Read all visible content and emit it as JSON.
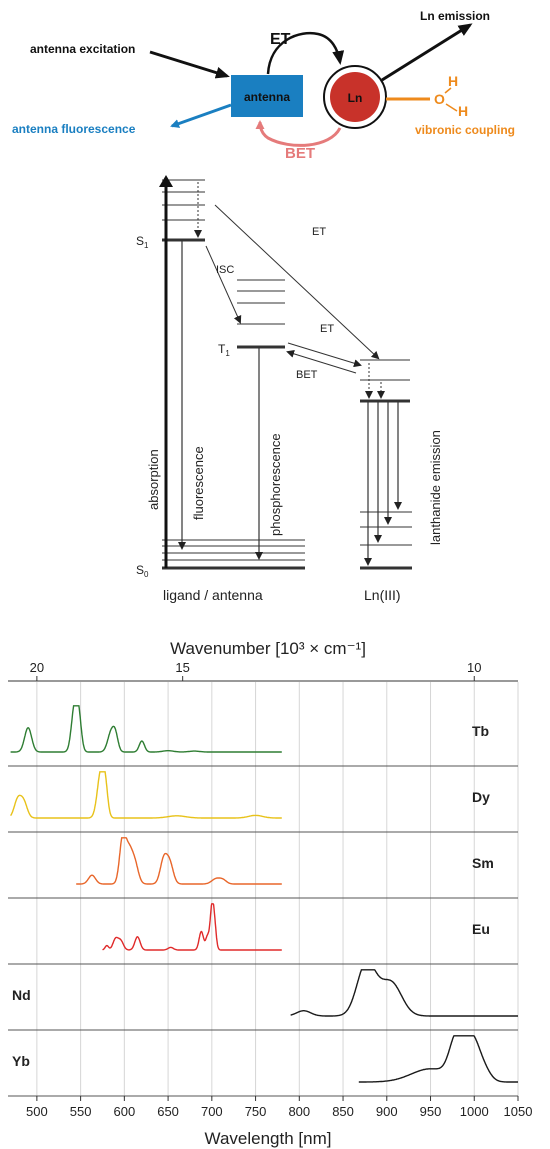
{
  "scheme": {
    "antenna_excitation": "antenna excitation",
    "antenna": "antenna",
    "ln": "Ln",
    "et": "ET",
    "bet": "BET",
    "ln_emission": "Ln emission",
    "antenna_fluorescence": "antenna fluorescence",
    "vibronic_coupling": "vibronic coupling",
    "h_top": "H",
    "o": "O",
    "h_bottom": "H",
    "colors": {
      "antenna": "#1a7fc1",
      "ln": "#c8322a",
      "bet": "#e57b7b",
      "vibronic": "#ee8a1c",
      "fluor": "#1a7fc1"
    }
  },
  "jablonski": {
    "s1": "S",
    "s1_sub": "1",
    "t1": "T",
    "t1_sub": "1",
    "s0": "S",
    "s0_sub": "0",
    "isc": "ISC",
    "et_top": "ET",
    "et_mid": "ET",
    "bet": "BET",
    "absorption": "absorption",
    "fluorescence": "fluorescence",
    "phosphorescence": "phosphorescence",
    "lanthanide_emission": "lanthanide emission",
    "ligand_antenna": "ligand / antenna",
    "ln_iii": "Ln(III)"
  },
  "chart_data": {
    "type": "line",
    "top_axis_label": "Wavenumber [10³ × cm⁻¹]",
    "top_ticks": [
      "20",
      "15",
      "10"
    ],
    "top_tick_values": [
      20,
      15,
      10
    ],
    "xlabel": "Wavelength [nm]",
    "xlim": [
      467,
      1050
    ],
    "x_ticks": [
      "500",
      "550",
      "600",
      "650",
      "700",
      "750",
      "800",
      "850",
      "900",
      "950",
      "1000",
      "1050"
    ],
    "x_tick_values": [
      500,
      550,
      600,
      650,
      700,
      750,
      800,
      850,
      900,
      950,
      1000,
      1050
    ],
    "grid": true,
    "series": [
      {
        "name": "Tb",
        "color": "#2e7d32",
        "x_range": [
          470,
          780
        ],
        "peaks": [
          [
            490,
            0.55,
            4
          ],
          [
            543,
            1.0,
            3.5
          ],
          [
            548,
            0.7,
            3
          ],
          [
            585,
            0.45,
            4
          ],
          [
            590,
            0.3,
            3
          ],
          [
            620,
            0.25,
            3
          ],
          [
            650,
            0.03,
            6
          ],
          [
            680,
            0.02,
            6
          ]
        ]
      },
      {
        "name": "Dy",
        "color": "#e8c21a",
        "x_range": [
          470,
          780
        ],
        "peaks": [
          [
            478,
            0.4,
            4
          ],
          [
            485,
            0.35,
            4
          ],
          [
            573,
            1.0,
            4
          ],
          [
            578,
            0.6,
            3
          ],
          [
            660,
            0.05,
            10
          ],
          [
            750,
            0.06,
            8
          ]
        ]
      },
      {
        "name": "Sm",
        "color": "#e8662a",
        "x_range": [
          545,
          780
        ],
        "peaks": [
          [
            563,
            0.2,
            4
          ],
          [
            598,
            1.0,
            3.5
          ],
          [
            605,
            0.7,
            4
          ],
          [
            612,
            0.45,
            4
          ],
          [
            645,
            0.55,
            4
          ],
          [
            652,
            0.45,
            4
          ],
          [
            705,
            0.12,
            5
          ],
          [
            713,
            0.08,
            4
          ]
        ]
      },
      {
        "name": "Eu",
        "color": "#e02a2a",
        "x_range": [
          575,
          780
        ],
        "peaks": [
          [
            580,
            0.1,
            2
          ],
          [
            590,
            0.25,
            3
          ],
          [
            596,
            0.2,
            3
          ],
          [
            615,
            0.3,
            3
          ],
          [
            653,
            0.06,
            3
          ],
          [
            688,
            0.42,
            2.5
          ],
          [
            695,
            0.3,
            2
          ],
          [
            700,
            0.9,
            2
          ],
          [
            703,
            0.55,
            2
          ]
        ]
      },
      {
        "name": "Nd",
        "color": "#1a1a1a",
        "x_range": [
          790,
          1050
        ],
        "peaks": [
          [
            805,
            0.12,
            8
          ],
          [
            875,
            1.0,
            10
          ],
          [
            905,
            0.75,
            12
          ],
          [
            885,
            0.3,
            10
          ]
        ]
      },
      {
        "name": "Yb",
        "color": "#1a1a1a",
        "x_range": [
          868,
          1050
        ],
        "peaks": [
          [
            950,
            0.3,
            22
          ],
          [
            980,
            0.95,
            8
          ],
          [
            997,
            0.9,
            8
          ],
          [
            1010,
            0.3,
            8
          ]
        ]
      }
    ]
  }
}
